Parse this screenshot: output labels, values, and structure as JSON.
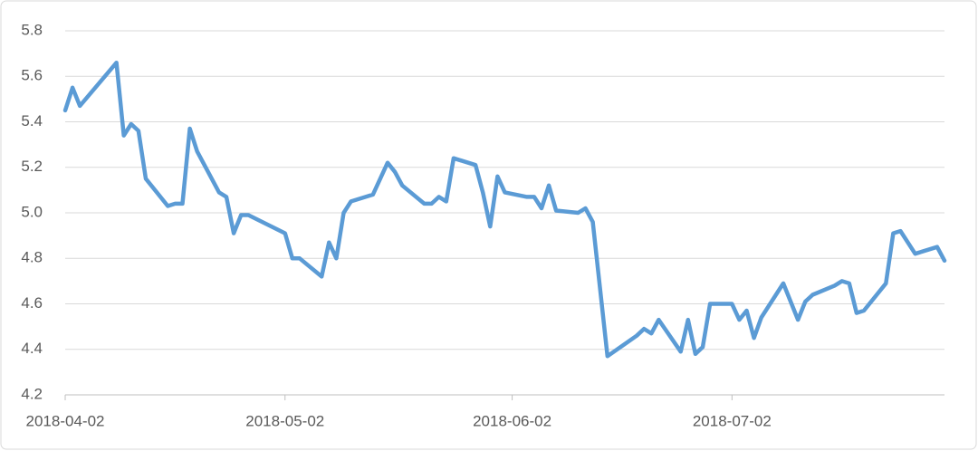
{
  "chart_data": {
    "type": "line",
    "x": [
      "2018-04-02",
      "2018-04-03",
      "2018-04-04",
      "2018-04-09",
      "2018-04-10",
      "2018-04-11",
      "2018-04-12",
      "2018-04-13",
      "2018-04-16",
      "2018-04-17",
      "2018-04-18",
      "2018-04-19",
      "2018-04-20",
      "2018-04-23",
      "2018-04-24",
      "2018-04-25",
      "2018-04-26",
      "2018-04-27",
      "2018-05-02",
      "2018-05-03",
      "2018-05-04",
      "2018-05-07",
      "2018-05-08",
      "2018-05-09",
      "2018-05-10",
      "2018-05-11",
      "2018-05-14",
      "2018-05-16",
      "2018-05-17",
      "2018-05-18",
      "2018-05-21",
      "2018-05-22",
      "2018-05-23",
      "2018-05-24",
      "2018-05-25",
      "2018-05-28",
      "2018-05-29",
      "2018-05-30",
      "2018-05-31",
      "2018-06-01",
      "2018-06-04",
      "2018-06-05",
      "2018-06-06",
      "2018-06-07",
      "2018-06-08",
      "2018-06-11",
      "2018-06-12",
      "2018-06-13",
      "2018-06-15",
      "2018-06-19",
      "2018-06-20",
      "2018-06-21",
      "2018-06-22",
      "2018-06-25",
      "2018-06-26",
      "2018-06-27",
      "2018-06-28",
      "2018-06-29",
      "2018-07-02",
      "2018-07-03",
      "2018-07-04",
      "2018-07-05",
      "2018-07-06",
      "2018-07-09",
      "2018-07-11",
      "2018-07-12",
      "2018-07-13",
      "2018-07-16",
      "2018-07-17",
      "2018-07-18",
      "2018-07-19",
      "2018-07-20",
      "2018-07-23",
      "2018-07-24",
      "2018-07-25",
      "2018-07-27",
      "2018-07-30",
      "2018-07-31"
    ],
    "series": [
      {
        "color": "#5b9bd5",
        "values": [
          5.45,
          5.55,
          5.47,
          5.66,
          5.34,
          5.39,
          5.36,
          5.15,
          5.03,
          5.04,
          5.04,
          5.37,
          5.27,
          5.09,
          5.07,
          4.91,
          4.99,
          4.99,
          4.91,
          4.8,
          4.8,
          4.72,
          4.87,
          4.8,
          5.0,
          5.05,
          5.08,
          5.22,
          5.18,
          5.12,
          5.04,
          5.04,
          5.07,
          5.05,
          5.24,
          5.21,
          5.09,
          4.94,
          5.16,
          5.09,
          5.07,
          5.07,
          5.02,
          5.12,
          5.01,
          5.0,
          5.02,
          4.96,
          4.37,
          4.46,
          4.49,
          4.47,
          4.53,
          4.39,
          4.53,
          4.38,
          4.41,
          4.6,
          4.6,
          4.53,
          4.57,
          4.45,
          4.54,
          4.69,
          4.53,
          4.61,
          4.64,
          4.68,
          4.7,
          4.69,
          4.56,
          4.57,
          4.69,
          4.91,
          4.92,
          4.82,
          4.85,
          4.79
        ]
      }
    ],
    "xlim": [
      "2018-04-02",
      "2018-07-31"
    ],
    "xticks": [
      "2018-04-02",
      "2018-05-02",
      "2018-06-02",
      "2018-07-02"
    ],
    "ylim": [
      4.2,
      5.8
    ],
    "yticks": [
      4.2,
      4.4,
      4.6,
      4.8,
      {
        "value": 5,
        "label": "5.0"
      },
      5.2,
      5.4,
      5.6,
      5.8
    ],
    "grid": true
  }
}
